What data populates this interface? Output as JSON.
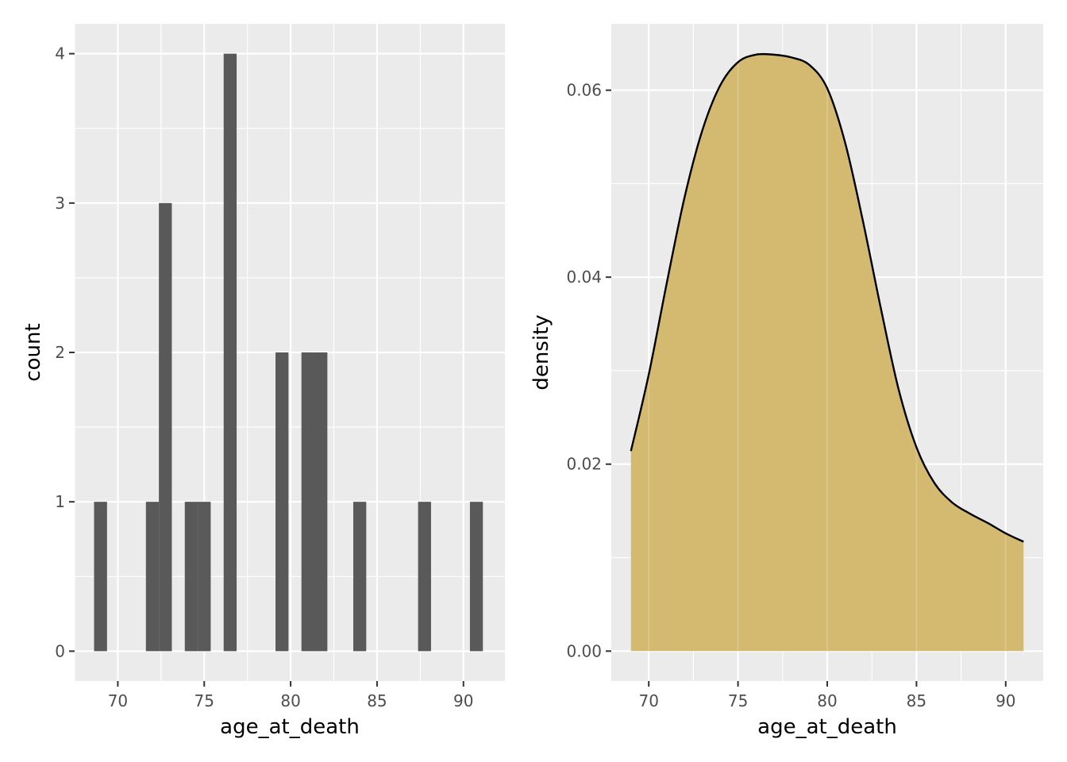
{
  "chart_data": [
    {
      "type": "bar",
      "subtype": "histogram",
      "xlabel": "age_at_death",
      "ylabel": "count",
      "xlim": [
        67.5,
        92.4
      ],
      "ylim": [
        -0.2,
        4.2
      ],
      "x_ticks": [
        70,
        75,
        80,
        85,
        90
      ],
      "x_tick_labels": [
        "70",
        "75",
        "80",
        "85",
        "90"
      ],
      "y_ticks": [
        0,
        1,
        2,
        3,
        4
      ],
      "y_tick_labels": [
        "0",
        "1",
        "2",
        "3",
        "4"
      ],
      "bin_width": 0.75,
      "bins": [
        {
          "x": 69.0,
          "count": 1
        },
        {
          "x": 72.0,
          "count": 1
        },
        {
          "x": 72.75,
          "count": 3
        },
        {
          "x": 74.25,
          "count": 1
        },
        {
          "x": 75.0,
          "count": 1
        },
        {
          "x": 76.5,
          "count": 4
        },
        {
          "x": 79.5,
          "count": 2
        },
        {
          "x": 81.0,
          "count": 2
        },
        {
          "x": 81.75,
          "count": 2
        },
        {
          "x": 84.0,
          "count": 1
        },
        {
          "x": 87.75,
          "count": 1
        },
        {
          "x": 90.75,
          "count": 1
        }
      ],
      "bar_color": "#595959",
      "grid": true,
      "panel_background": "#ebebeb"
    },
    {
      "type": "area",
      "subtype": "density",
      "xlabel": "age_at_death",
      "ylabel": "density",
      "xlim": [
        67.9,
        92.1
      ],
      "ylim": [
        -0.0032,
        0.0671
      ],
      "x_ticks": [
        70,
        75,
        80,
        85,
        90
      ],
      "x_tick_labels": [
        "70",
        "75",
        "80",
        "85",
        "90"
      ],
      "y_ticks": [
        0.0,
        0.02,
        0.04,
        0.06
      ],
      "y_tick_labels": [
        "0.00",
        "0.02",
        "0.04",
        "0.06"
      ],
      "x": [
        69,
        70,
        71,
        72,
        73,
        74,
        75,
        76,
        77,
        78,
        79,
        80,
        81,
        82,
        83,
        84,
        85,
        86,
        87,
        88,
        89,
        90,
        91
      ],
      "y": [
        0.0214,
        0.0296,
        0.0393,
        0.0485,
        0.0557,
        0.0605,
        0.063,
        0.0638,
        0.0638,
        0.0635,
        0.0627,
        0.0602,
        0.0544,
        0.046,
        0.0367,
        0.028,
        0.0218,
        0.018,
        0.0159,
        0.0147,
        0.0137,
        0.0126,
        0.0117
      ],
      "fill_color": "#d4b970",
      "line_color": "#000000",
      "grid": true,
      "panel_background": "#ebebeb"
    }
  ]
}
